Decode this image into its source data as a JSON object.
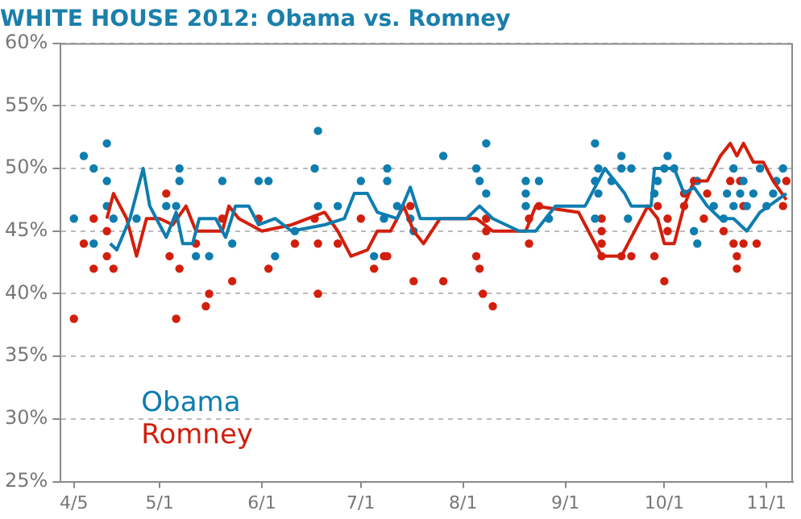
{
  "chart_data": {
    "type": "line",
    "title": "WHITE HOUSE 2012: Obama vs. Romney",
    "xlim": [
      "--04-01",
      "--11-09"
    ],
    "xticks": [
      {
        "value": "--04-05",
        "label": "4/5"
      },
      {
        "value": "--05-01",
        "label": "5/1"
      },
      {
        "value": "--06-01",
        "label": "6/1"
      },
      {
        "value": "--07-01",
        "label": "7/1"
      },
      {
        "value": "--08-01",
        "label": "8/1"
      },
      {
        "value": "--09-01",
        "label": "9/1"
      },
      {
        "value": "--10-01",
        "label": "10/1"
      },
      {
        "value": "--11-01",
        "label": "11/1"
      }
    ],
    "ylim": [
      25,
      60
    ],
    "yticks": [
      {
        "value": 25,
        "label": "25%"
      },
      {
        "value": 30,
        "label": "30%"
      },
      {
        "value": 35,
        "label": "35%"
      },
      {
        "value": 40,
        "label": "40%"
      },
      {
        "value": 45,
        "label": "45%"
      },
      {
        "value": 50,
        "label": "50%"
      },
      {
        "value": 55,
        "label": "55%"
      },
      {
        "value": 60,
        "label": "60%"
      }
    ],
    "grid": "y",
    "legend": "bottom left",
    "line_style": "solid",
    "series": [
      {
        "name": "Obama",
        "marker": "none",
        "color": "#0e7db0",
        "x": [
          "--04-16",
          "--04-18",
          "--04-22",
          "--04-24",
          "--04-26",
          "--04-28",
          "--04-30",
          "--05-03",
          "--05-06",
          "--05-08",
          "--05-11",
          "--05-13",
          "--05-18",
          "--05-21",
          "--05-24",
          "--05-28",
          "--05-31",
          "--06-05",
          "--06-10",
          "--06-20",
          "--06-26",
          "--06-29",
          "--07-03",
          "--07-06",
          "--07-12",
          "--07-16",
          "--07-19",
          "--07-25",
          "--08-02",
          "--08-06",
          "--08-10",
          "--08-18",
          "--08-23",
          "--08-29",
          "--09-07",
          "--09-11",
          "--09-13",
          "--09-19",
          "--09-21",
          "--09-27",
          "--09-28",
          "--10-04",
          "--10-07",
          "--10-10",
          "--10-14",
          "--10-18",
          "--10-22",
          "--10-26",
          "--10-30",
          "--11-07"
        ],
        "values": [
          44,
          43.5,
          46,
          48,
          50,
          47,
          46,
          44.5,
          46.5,
          44,
          44,
          46,
          46,
          44.5,
          47,
          47,
          45.5,
          46,
          45,
          45.5,
          46,
          48,
          48,
          46.5,
          46,
          48.5,
          46,
          46,
          46,
          47,
          46,
          45,
          45,
          47,
          47,
          49,
          50,
          48,
          47,
          47,
          50,
          50,
          48,
          48.5,
          47,
          46,
          46,
          45,
          46.5,
          48
        ]
      },
      {
        "name": "Romney",
        "marker": "none",
        "color": "#d21f0c",
        "x": [
          "--04-15",
          "--04-17",
          "--04-21",
          "--04-24",
          "--04-27",
          "--05-01",
          "--05-05",
          "--05-09",
          "--05-12",
          "--05-20",
          "--05-22",
          "--05-25",
          "--06-01",
          "--06-10",
          "--06-20",
          "--06-24",
          "--06-28",
          "--07-03",
          "--07-06",
          "--07-10",
          "--07-14",
          "--07-17",
          "--07-20",
          "--07-25",
          "--08-05",
          "--08-10",
          "--08-20",
          "--08-23",
          "--09-05",
          "--09-08",
          "--09-10",
          "--09-12",
          "--09-18",
          "--09-22",
          "--09-26",
          "--09-29",
          "--10-01",
          "--10-04",
          "--10-07",
          "--10-10",
          "--10-14",
          "--10-18",
          "--10-21",
          "--10-23",
          "--10-25",
          "--10-28",
          "--10-31",
          "--11-03",
          "--11-07"
        ],
        "values": [
          46,
          48,
          46,
          43,
          46,
          46,
          45.5,
          47,
          45,
          45,
          47,
          46,
          45,
          45.5,
          46.5,
          45,
          43,
          43.5,
          45,
          45,
          47,
          45,
          44,
          46,
          46,
          45,
          45,
          47,
          46.5,
          45,
          44,
          43,
          43,
          45,
          47,
          46,
          44,
          44,
          47,
          49,
          49,
          51,
          52,
          51,
          52,
          50.5,
          50.5,
          49,
          47.5
        ]
      },
      {
        "type": "scatter",
        "marker": "circle",
        "color": "#0e7db0",
        "x": [
          "--04-05",
          "--04-08",
          "--04-11",
          "--04-15",
          "--04-15",
          "--04-15",
          "--04-11",
          "--04-17",
          "--04-24",
          "--05-03",
          "--05-06",
          "--05-07",
          "--05-07",
          "--05-12",
          "--05-16",
          "--05-20",
          "--05-23",
          "--05-31",
          "--06-03",
          "--06-05",
          "--06-11",
          "--06-18",
          "--06-17",
          "--06-18",
          "--06-24",
          "--07-01",
          "--07-09",
          "--07-09",
          "--07-05",
          "--07-08",
          "--07-12",
          "--07-16",
          "--07-17",
          "--07-26",
          "--08-05",
          "--08-08",
          "--08-06",
          "--08-08",
          "--08-20",
          "--08-20",
          "--08-20",
          "--08-24",
          "--08-27",
          "--09-10",
          "--09-11",
          "--09-10",
          "--09-11",
          "--09-10",
          "--09-18",
          "--09-18",
          "--09-21",
          "--09-15",
          "--09-20",
          "--09-28",
          "--10-02",
          "--10-01",
          "--09-29",
          "--10-04",
          "--10-11",
          "--10-11",
          "--10-10",
          "--10-16",
          "--10-19",
          "--10-22",
          "--10-30",
          "--11-06",
          "--10-20",
          "--10-24",
          "--10-28",
          "--11-03",
          "--10-22",
          "--10-26",
          "--11-01",
          "--10-25",
          "--11-04"
        ],
        "values": [
          46,
          51,
          50,
          52,
          49,
          47,
          44,
          46,
          46,
          47,
          47,
          50,
          49,
          43,
          43,
          49,
          44,
          49,
          49,
          43,
          45,
          53,
          50,
          47,
          47,
          49,
          50,
          49,
          43,
          46,
          47,
          46,
          45,
          51,
          50,
          52,
          49,
          48,
          49,
          47,
          48,
          49,
          46,
          52,
          50,
          49,
          48,
          46,
          51,
          50,
          50,
          49,
          46,
          48,
          51,
          50,
          49,
          50,
          49,
          44,
          45,
          47,
          46,
          50,
          50,
          50,
          48,
          48,
          48,
          48,
          47,
          47,
          47,
          49,
          49
        ]
      },
      {
        "type": "scatter",
        "marker": "circle",
        "color": "#d21f0c",
        "x": [
          "--04-05",
          "--04-08",
          "--04-11",
          "--04-11",
          "--04-15",
          "--04-15",
          "--04-17",
          "--05-03",
          "--05-04",
          "--05-07",
          "--05-06",
          "--05-12",
          "--05-16",
          "--05-15",
          "--05-23",
          "--05-20",
          "--05-31",
          "--06-03",
          "--06-11",
          "--06-18",
          "--06-18",
          "--06-24",
          "--06-17",
          "--07-01",
          "--07-05",
          "--07-08",
          "--07-09",
          "--07-16",
          "--07-17",
          "--07-26",
          "--08-05",
          "--08-06",
          "--08-07",
          "--08-10",
          "--08-08",
          "--08-08",
          "--08-21",
          "--08-24",
          "--08-21",
          "--09-12",
          "--09-12",
          "--09-12",
          "--09-12",
          "--09-18",
          "--09-21",
          "--09-28",
          "--10-01",
          "--09-29",
          "--10-02",
          "--10-02",
          "--10-07",
          "--10-07",
          "--10-10",
          "--10-14",
          "--10-13",
          "--10-19",
          "--10-21",
          "--10-22",
          "--10-23",
          "--10-23",
          "--10-25",
          "--10-29",
          "--10-24",
          "--10-25",
          "--11-06",
          "--11-07"
        ],
        "values": [
          38,
          44,
          46,
          42,
          45,
          43,
          42,
          48,
          43,
          42,
          38,
          44,
          40,
          39,
          41,
          46,
          46,
          42,
          44,
          44,
          40,
          44,
          46,
          46,
          42,
          43,
          43,
          47,
          41,
          41,
          43,
          42,
          40,
          39,
          46,
          45,
          44,
          47,
          46,
          46,
          45,
          44,
          43,
          43,
          43,
          43,
          41,
          47,
          46,
          45,
          48,
          47,
          49,
          48,
          46,
          45,
          49,
          44,
          42,
          43,
          44,
          44,
          49,
          47,
          47,
          49
        ]
      }
    ]
  }
}
